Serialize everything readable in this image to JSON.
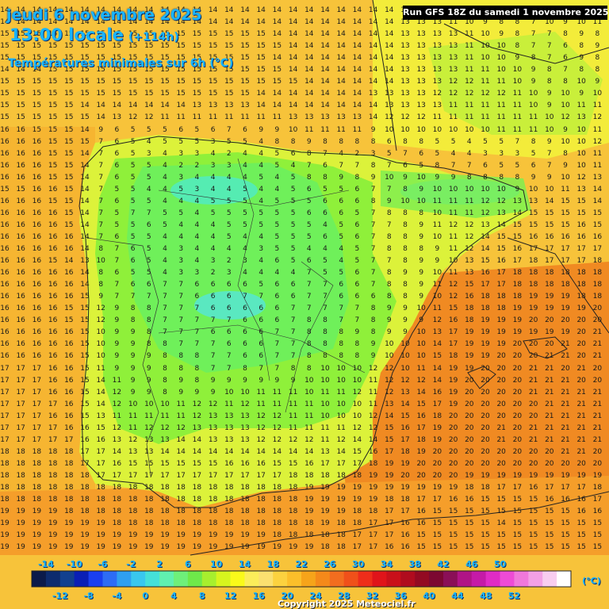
{
  "header": {
    "date": "jeudi 6 novembre 2025",
    "time": "13:00 locale",
    "offset": "(+114h)",
    "subtitle": "Températures minimales sur 6h (°C)",
    "run": "Run GFS 18Z du samedi 1 novembre 2025"
  },
  "legend": {
    "unit": "(°C)",
    "top_labels": [
      "-14",
      "-10",
      "-6",
      "-2",
      "2",
      "6",
      "10",
      "14",
      "18",
      "22",
      "26",
      "30",
      "34",
      "38",
      "42",
      "46",
      "50"
    ],
    "bottom_labels": [
      "-12",
      "-8",
      "-4",
      "0",
      "4",
      "8",
      "12",
      "16",
      "20",
      "24",
      "28",
      "32",
      "36",
      "40",
      "44",
      "48",
      "52"
    ],
    "colors": [
      "#0b1a4a",
      "#0d2b6e",
      "#12408f",
      "#0a1fb5",
      "#1a3ff0",
      "#2d6cf5",
      "#2f9ff0",
      "#39c7ee",
      "#45e0d8",
      "#60f0b0",
      "#6ef07a",
      "#6ee94a",
      "#a7ef2e",
      "#d7f51e",
      "#fafa1a",
      "#fbed5a",
      "#fbe070",
      "#fcd23f",
      "#fbbf2a",
      "#f6a41a",
      "#f4891a",
      "#f26d1f",
      "#f0501a",
      "#ee2d1a",
      "#e0141a",
      "#c9101a",
      "#b00c1e",
      "#930a22",
      "#7c0831",
      "#8a0f57",
      "#b01486",
      "#c51aa7",
      "#e02bc5",
      "#ee4bd6",
      "#f078db",
      "#f3a0e5",
      "#f8cdf0",
      "#ffffff"
    ]
  },
  "temperature_grid": [
    "14 14 14 14 14 14 14 14 14 14 14 14 14 14 14 14 14 14 14 14 14 14 14 14 14 14 14 14 14 14 14 14 14 14 14 14 14 14",
    "14 14 14 14 14 14 14 14 14 14 14 14 14 14 14 14 14 14 14 14 14 14 14 14 14 13 13 13 11 10 9 8 8 7 10 9 10 11",
    "15 15 15 15 15 15 15 15 15 15 15 15 15 15 15 15 15 14 14 14 14 14 14 14 14 13 13 13 13 11 10 9 8 7 7 8 9 8",
    "15 15 15 15 15 15 15 15 15 15 15 15 15 15 15 15 15 15 14 14 14 14 14 14 14 13 13 13 13 11 10 10 8 7 7 6 8 9",
    "15 15 15 15 15 15 15 15 15 15 15 15 15 15 15 15 15 14 14 14 14 14 14 14 14 13 13 13 13 11 10 10 9 8 7 6 9 8",
    "14 14 14 15 15 15 15 15 15 15 15 15 15 15 15 15 15 15 14 14 14 14 14 14 14 13 13 13 13 11 11 10 10 9 8 7 8 8",
    "15 15 15 15 15 15 15 15 15 15 15 15 15 15 15 15 15 15 15 14 14 14 14 14 14 13 13 13 12 12 11 11 10 9 8 8 10 9",
    "15 15 15 15 15 15 15 15 15 15 15 15 15 15 15 15 14 14 14 14 14 14 14 13 13 13 13 12 12 12 12 12 11 10 9 10 9 10",
    "15 15 15 15 15 14 14 14 14 14 14 14 13 13 13 13 14 14 14 14 14 14 14 14 13 13 13 13 11 11 11 11 11 10 9 10 11 11",
    "15 15 15 15 15 15 14 13 12 12 11 11 11 11 11 11 11 11 13 13 13 13 13 14 12 12 12 11 11 11 11 11 11 11 10 12 13 12",
    "16 16 15 15 15 14 9 6 5 5 5 6 5 6 7 6 9 9 10 11 11 11 11 9 10 10 10 10 10 10 10 11 11 11 10 9 10 11",
    "16 16 16 15 15 15 7 6 5 4 5 5 5 3 5 5 4 8 8 9 8 8 8 8 6 8 8 5 5 4 5 5 7 8 9 10 10 12",
    "16 16 16 15 15 14 7 6 5 3 4 3 3 4 2 4 4 5 6 8 7 4 2 3 5 7 6 5 4 4 3 3 3 5 7 8 10 11",
    "16 16 16 15 15 14 7 6 5 5 4 2 2 3 3 4 4 5 4 7 6 7 7 8 7 6 5 8 7 7 6 5 5 6 7 9 10 11",
    "16 16 16 15 15 14 7 6 5 5 4 3 4 4 4 4 5 4 5 8 8 9 8 9 10 9 10 9 9 8 8 8 8 9 9 10 12 13",
    "15 15 16 16 15 14 7 5 5 4 4 5 3 4 4 5 4 4 5 6 5 5 6 7 7 8 9 10 10 10 10 10 9 10 10 11 13 14",
    "16 16 16 15 15 14 7 6 5 5 4 4 4 5 5 5 4 5 5 5 6 6 6 8 9 10 10 11 11 11 12 12 13 13 14 15 15 14",
    "16 16 16 16 15 14 7 5 7 7 5 5 4 5 5 5 5 5 5 6 6 6 5 7 8 8 8 10 11 11 12 13 14 15 15 15 15 15",
    "16 16 16 16 15 14 7 5 5 6 5 4 4 4 5 5 5 5 5 5 4 5 6 7 7 8 9 11 12 12 13 14 15 15 15 15 16 15",
    "16 16 16 16 16 14 7 6 5 5 4 4 4 4 5 4 4 5 5 5 6 5 6 7 8 8 9 10 11 12 14 15 15 16 16 16 16 16",
    "16 16 16 16 16 14 8 7 6 5 4 3 4 4 4 4 3 5 5 4 4 4 5 7 8 8 8 9 11 12 14 15 16 17 17 17 17 17",
    "16 16 16 15 14 13 10 7 6 5 4 3 4 3 2 3 4 6 5 6 5 4 5 7 7 8 9 9 10 13 15 16 17 18 17 17 17 18",
    "16 16 16 16 16 14 8 6 5 5 4 3 3 2 3 4 4 4 4 7 5 5 6 7 8 9 9 10 11 13 16 17 18 18 18 18 18 18",
    "16 16 16 16 16 14 8 7 6 6 7 7 6 6 6 6 5 6 6 7 7 6 6 7 8 8 9 11 12 15 17 17 18 18 18 18 18 18",
    "16 16 16 16 16 15 9 7 7 7 7 7 6 6 6 7 7 6 6 7 7 6 6 6 8 8 9 10 12 16 18 18 18 19 19 19 18 18",
    "16 16 16 16 15 15 12 9 8 8 7 7 7 6 6 6 6 6 7 7 7 7 7 8 9 9 10 11 15 18 18 18 19 19 19 19 19 20",
    "16 16 16 16 15 15 12 9 8 8 7 7 7 7 7 6 6 6 7 8 8 7 7 8 9 9 9 12 16 18 19 19 19 20 20 20 20 20",
    "16 16 16 16 16 15 10 9 9 8 7 7 7 6 6 6 6 7 7 8 8 8 9 8 9 9 10 13 17 19 19 19 19 19 19 19 20 21",
    "16 16 16 16 16 15 10 9 9 8 8 7 7 7 6 6 6 7 7 8 8 8 8 9 10 10 10 14 17 19 19 19 20 20 20 21 20 21",
    "16 16 16 16 16 15 10 9 9 9 8 8 8 7 7 6 6 7 7 8 8 8 8 9 10 10 10 15 18 19 19 20 20 20 21 21 20 21",
    "17 17 17 16 16 15 11 9 9 9 8 8 8 7 7 8 7 7 8 8 10 10 10 12 12 10 11 14 19 19 20 20 20 21 21 20 21 20",
    "17 17 17 16 16 15 14 11 9 9 8 9 8 9 9 9 9 9 9 10 10 10 10 11 12 12 12 14 19 20 20 20 20 21 21 21 20 20",
    "17 17 17 16 16 15 14 12 9 9 8 9 9 9 10 10 11 11 11 10 11 11 12 11 12 13 14 16 19 20 20 20 20 21 21 21 21 21",
    "17 17 17 17 16 15 14 12 10 10 10 11 12 12 11 12 11 11 11 11 10 10 10 11 13 14 15 17 19 20 20 20 20 20 21 21 21 21",
    "17 17 17 16 16 15 13 11 11 11 11 11 12 13 13 13 12 12 11 11 10 10 10 12 14 15 16 18 20 20 20 20 20 20 21 21 21 21",
    "17 17 17 17 16 16 15 12 11 12 12 12 13 13 13 13 12 12 11 11 11 11 12 12 15 16 17 19 20 20 20 21 20 21 21 21 21 21",
    "17 17 17 17 17 16 16 13 12 13 13 14 14 13 13 13 12 12 12 12 11 12 14 14 15 17 18 19 20 20 20 21 20 21 21 21 21 21",
    "18 18 18 18 18 17 17 14 13 13 14 14 14 14 14 14 14 14 14 14 13 14 15 16 17 18 19 20 20 20 20 20 20 20 20 21 21 20",
    "18 18 18 18 18 17 17 16 15 15 15 15 15 15 16 16 16 15 15 16 17 17 17 18 19 19 20 20 20 20 20 20 20 20 20 20 20 20",
    "18 18 18 18 18 18 17 17 17 17 17 17 17 17 17 17 17 17 18 18 18 18 18 19 19 20 20 20 20 19 19 19 19 19 19 19 19 19",
    "18 18 18 18 18 18 18 18 18 18 18 18 18 18 18 18 18 18 18 19 19 19 19 19 19 19 19 19 19 18 18 17 17 16 17 17 17 18",
    "18 18 18 18 18 18 18 18 18 18 18 18 18 18 18 18 18 18 18 19 19 19 19 19 18 18 17 17 16 16 15 15 15 15 16 16 16 17",
    "19 19 19 19 18 18 18 18 18 18 18 18 18 18 18 18 18 18 18 19 19 19 18 18 17 17 16 15 15 15 15 15 15 15 15 15 16 16",
    "19 19 19 19 19 19 19 18 18 18 18 18 18 18 18 18 18 18 18 18 19 18 18 17 17 16 16 15 15 15 15 14 15 15 15 15 15 15",
    "19 19 19 19 19 19 19 19 19 19 19 19 19 19 19 19 19 18 18 18 18 18 17 17 17 16 15 15 15 15 15 15 15 15 15 15 15 15",
    "19 19 19 19 19 19 19 19 19 19 19 19 19 19 19 19 19 19 19 19 18 18 17 17 16 16 15 15 15 15 15 15 15 15 15 15 15 15"
  ],
  "copyright": "Copyright 2025 Meteociel.fr"
}
